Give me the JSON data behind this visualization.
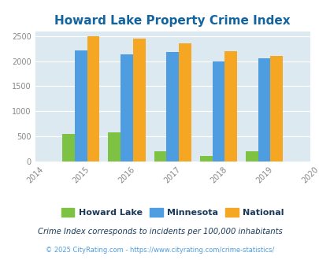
{
  "title": "Howard Lake Property Crime Index",
  "years": [
    2015,
    2016,
    2017,
    2018,
    2019
  ],
  "howard_lake": [
    540,
    580,
    200,
    105,
    200
  ],
  "minnesota": [
    2210,
    2130,
    2185,
    2000,
    2065
  ],
  "national": [
    2500,
    2450,
    2360,
    2205,
    2100
  ],
  "bar_colors": {
    "howard_lake": "#7dc242",
    "minnesota": "#4d9de0",
    "national": "#f5a623"
  },
  "xlim": [
    2014,
    2020
  ],
  "ylim": [
    0,
    2600
  ],
  "yticks": [
    0,
    500,
    1000,
    1500,
    2000,
    2500
  ],
  "xticks": [
    2014,
    2015,
    2016,
    2017,
    2018,
    2019,
    2020
  ],
  "title_color": "#1464a0",
  "title_fontsize": 11,
  "bg_color": "#dce9f0",
  "legend_labels": [
    "Howard Lake",
    "Minnesota",
    "National"
  ],
  "footnote1": "Crime Index corresponds to incidents per 100,000 inhabitants",
  "footnote2": "© 2025 CityRating.com - https://www.cityrating.com/crime-statistics/",
  "bar_width": 0.27,
  "footnote1_color": "#1a3a5c",
  "footnote2_color": "#4d9de0"
}
